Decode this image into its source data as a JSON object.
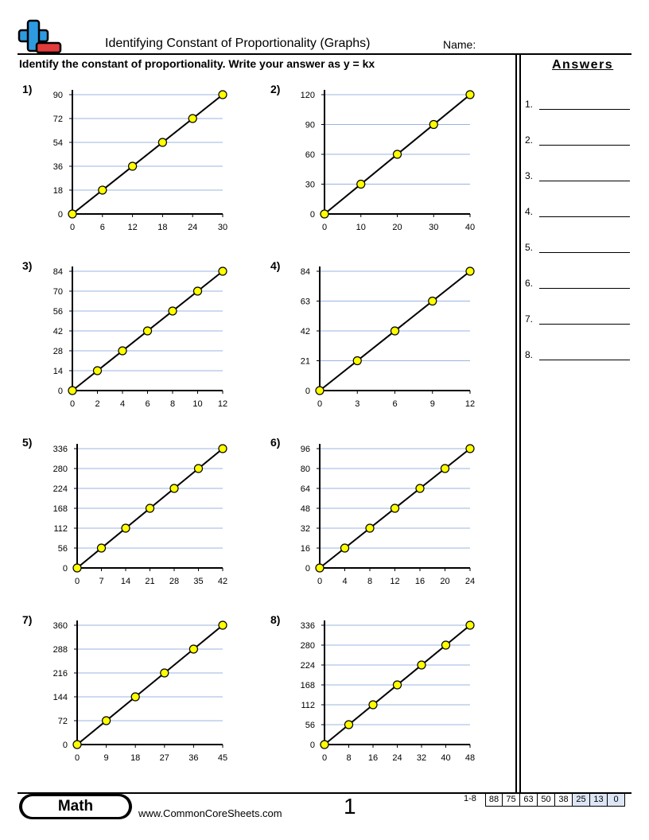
{
  "header": {
    "title": "Identifying Constant of Proportionality (Graphs)",
    "name_label": "Name:",
    "instructions": "Identify the constant of proportionality. Write your answer as y = kx"
  },
  "answers": {
    "title": "Answers",
    "items": [
      "1.",
      "2.",
      "3.",
      "4.",
      "5.",
      "6.",
      "7.",
      "8."
    ]
  },
  "problems": [
    {
      "label": "1)",
      "x_ticks": [
        0,
        6,
        12,
        18,
        24,
        30
      ],
      "y_ticks": [
        0,
        18,
        36,
        54,
        72,
        90
      ]
    },
    {
      "label": "2)",
      "x_ticks": [
        0,
        10,
        20,
        30,
        40
      ],
      "y_ticks": [
        0,
        30,
        60,
        90,
        120
      ]
    },
    {
      "label": "3)",
      "x_ticks": [
        0,
        2,
        4,
        6,
        8,
        10,
        12
      ],
      "y_ticks": [
        0,
        14,
        28,
        42,
        56,
        70,
        84
      ]
    },
    {
      "label": "4)",
      "x_ticks": [
        0,
        3,
        6,
        9,
        12
      ],
      "y_ticks": [
        0,
        21,
        42,
        63,
        84
      ]
    },
    {
      "label": "5)",
      "x_ticks": [
        0,
        7,
        14,
        21,
        28,
        35,
        42
      ],
      "y_ticks": [
        0,
        56,
        112,
        168,
        224,
        280,
        336
      ]
    },
    {
      "label": "6)",
      "x_ticks": [
        0,
        4,
        8,
        12,
        16,
        20,
        24
      ],
      "y_ticks": [
        0,
        16,
        32,
        48,
        64,
        80,
        96
      ]
    },
    {
      "label": "7)",
      "x_ticks": [
        0,
        9,
        18,
        27,
        36,
        45
      ],
      "y_ticks": [
        0,
        72,
        144,
        216,
        288,
        360
      ]
    },
    {
      "label": "8)",
      "x_ticks": [
        0,
        8,
        16,
        24,
        32,
        40,
        48
      ],
      "y_ticks": [
        0,
        56,
        112,
        168,
        224,
        280,
        336
      ]
    }
  ],
  "footer": {
    "subject": "Math",
    "site": "www.CommonCoreSheets.com",
    "page": "1",
    "score_label": "1-8",
    "scores": [
      "88",
      "75",
      "63",
      "50",
      "38",
      "25",
      "13",
      "0"
    ]
  },
  "colors": {
    "gridline": "#9bb4e0",
    "point_fill": "#ffff00",
    "logo_plus": "#2e9be0",
    "logo_minus": "#e23c3c",
    "score_highlight": "#dce6f5"
  }
}
